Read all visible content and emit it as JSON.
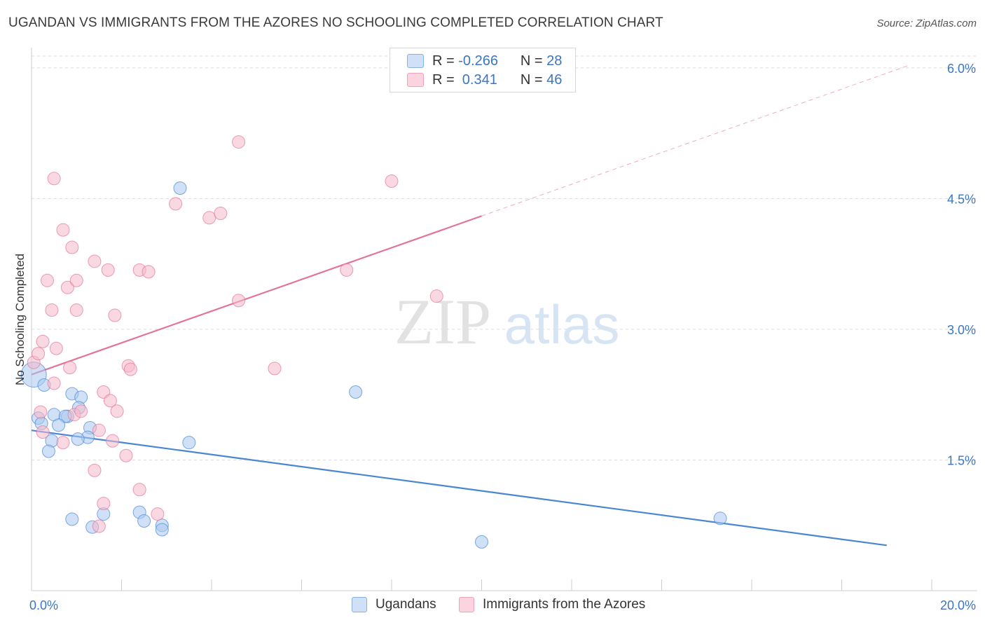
{
  "header": {
    "title": "UGANDAN VS IMMIGRANTS FROM THE AZORES NO SCHOOLING COMPLETED CORRELATION CHART",
    "source": "Source: ZipAtlas.com"
  },
  "watermark": {
    "zip": "ZIP",
    "atlas": "atlas"
  },
  "legend": {
    "rows": [
      {
        "r_label": "R =",
        "r_value": "-0.266",
        "n_label": "N =",
        "n_value": "28",
        "color": "#a9c8f0"
      },
      {
        "r_label": "R =",
        "r_value": " 0.341",
        "n_label": "N =",
        "n_value": "46",
        "color": "#f5b8cb"
      }
    ]
  },
  "bottom_legend": {
    "items": [
      {
        "label": "Ugandans",
        "color": "#a9c8f0"
      },
      {
        "label": "Immigrants from the Azores",
        "color": "#f5b8cb"
      }
    ]
  },
  "chart_data": {
    "type": "scatter",
    "title": "UGANDAN VS IMMIGRANTS FROM THE AZORES NO SCHOOLING COMPLETED CORRELATION CHART",
    "xlabel": "",
    "ylabel": "No Schooling Completed",
    "xlim": [
      0,
      20
    ],
    "ylim": [
      0,
      6.2
    ],
    "x_tick_labels": [
      "0.0%",
      "20.0%"
    ],
    "y_ticks": [
      1.5,
      3.0,
      4.5,
      6.0
    ],
    "y_tick_labels": [
      "1.5%",
      "3.0%",
      "4.5%",
      "6.0%"
    ],
    "grid": true,
    "series": [
      {
        "name": "Ugandans",
        "color": "#4a86d4",
        "fill": "#a9c8f0",
        "points": [
          [
            0.05,
            2.48
          ],
          [
            0.28,
            2.36
          ],
          [
            0.15,
            1.98
          ],
          [
            0.22,
            1.92
          ],
          [
            0.9,
            2.26
          ],
          [
            1.1,
            2.22
          ],
          [
            0.5,
            2.02
          ],
          [
            1.05,
            2.1
          ],
          [
            0.8,
            2.0
          ],
          [
            0.75,
            2.0
          ],
          [
            1.3,
            1.87
          ],
          [
            1.25,
            1.76
          ],
          [
            1.03,
            1.74
          ],
          [
            0.6,
            1.9
          ],
          [
            0.45,
            1.72
          ],
          [
            0.38,
            1.6
          ],
          [
            3.3,
            4.62
          ],
          [
            3.5,
            1.7
          ],
          [
            0.9,
            0.82
          ],
          [
            1.35,
            0.73
          ],
          [
            1.6,
            0.88
          ],
          [
            2.4,
            0.9
          ],
          [
            2.5,
            0.8
          ],
          [
            2.9,
            0.75
          ],
          [
            2.9,
            0.7
          ],
          [
            7.2,
            2.28
          ],
          [
            10.0,
            0.56
          ],
          [
            15.3,
            0.83
          ]
        ],
        "trend": {
          "x": [
            0,
            19.0
          ],
          "y": [
            1.84,
            0.52
          ]
        }
      },
      {
        "name": "Immigrants from the Azores",
        "color": "#e27399",
        "fill": "#f5b8cb",
        "points": [
          [
            0.05,
            2.62
          ],
          [
            0.2,
            2.05
          ],
          [
            0.15,
            2.72
          ],
          [
            0.25,
            2.86
          ],
          [
            0.5,
            2.38
          ],
          [
            0.55,
            2.78
          ],
          [
            0.45,
            3.22
          ],
          [
            0.35,
            3.56
          ],
          [
            0.7,
            1.7
          ],
          [
            0.25,
            1.82
          ],
          [
            0.95,
            2.02
          ],
          [
            1.1,
            2.06
          ],
          [
            0.85,
            2.56
          ],
          [
            1.0,
            3.22
          ],
          [
            0.8,
            3.48
          ],
          [
            1.0,
            3.56
          ],
          [
            0.7,
            4.14
          ],
          [
            0.9,
            3.94
          ],
          [
            0.5,
            4.73
          ],
          [
            1.4,
            1.38
          ],
          [
            1.5,
            1.84
          ],
          [
            1.6,
            2.28
          ],
          [
            1.9,
            2.06
          ],
          [
            1.75,
            2.18
          ],
          [
            1.8,
            1.72
          ],
          [
            1.4,
            3.78
          ],
          [
            1.7,
            3.68
          ],
          [
            1.85,
            3.16
          ],
          [
            2.15,
            2.58
          ],
          [
            2.2,
            2.54
          ],
          [
            2.1,
            1.55
          ],
          [
            1.6,
            1.0
          ],
          [
            1.5,
            0.74
          ],
          [
            2.4,
            1.16
          ],
          [
            2.8,
            0.88
          ],
          [
            2.4,
            3.68
          ],
          [
            2.6,
            3.66
          ],
          [
            3.2,
            4.44
          ],
          [
            3.95,
            4.28
          ],
          [
            4.2,
            4.33
          ],
          [
            4.6,
            3.33
          ],
          [
            4.6,
            5.15
          ],
          [
            5.4,
            2.55
          ],
          [
            7.0,
            3.68
          ],
          [
            8.0,
            4.7
          ],
          [
            9.0,
            3.38
          ]
        ],
        "trend": {
          "x": [
            0,
            10.0
          ],
          "y": [
            2.48,
            4.3
          ]
        },
        "trend_extension": {
          "x": [
            10.0,
            19.5
          ],
          "y": [
            4.3,
            6.03
          ]
        }
      }
    ]
  }
}
